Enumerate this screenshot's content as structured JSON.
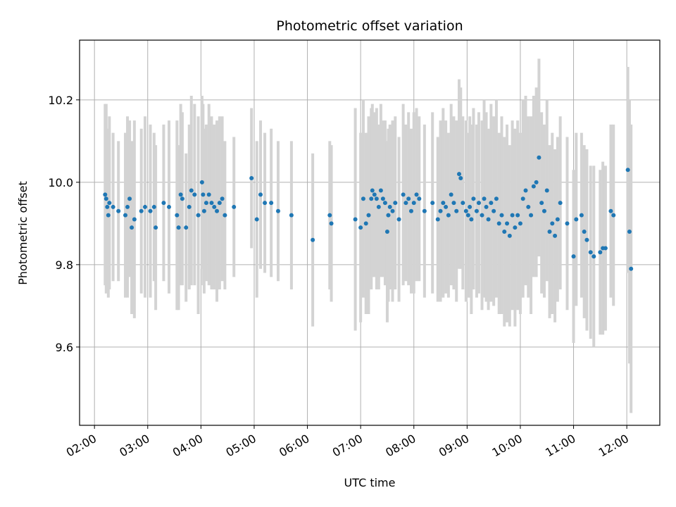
{
  "chart_data": {
    "type": "scatter",
    "title": "Photometric offset variation",
    "xlabel": "UTC time",
    "ylabel": "Photometric offset",
    "x_unit": "UTC hour of day",
    "xlim": [
      1.72,
      12.62
    ],
    "ylim": [
      9.41,
      10.345
    ],
    "grid": true,
    "legend": "none",
    "x_ticks": [
      {
        "value": 2,
        "label": "02:00"
      },
      {
        "value": 3,
        "label": "03:00"
      },
      {
        "value": 4,
        "label": "04:00"
      },
      {
        "value": 5,
        "label": "05:00"
      },
      {
        "value": 6,
        "label": "06:00"
      },
      {
        "value": 7,
        "label": "07:00"
      },
      {
        "value": 8,
        "label": "08:00"
      },
      {
        "value": 9,
        "label": "09:00"
      },
      {
        "value": 10,
        "label": "10:00"
      },
      {
        "value": 11,
        "label": "11:00"
      },
      {
        "value": 12,
        "label": "12:00"
      }
    ],
    "y_ticks": [
      {
        "value": 9.6,
        "label": "9.6"
      },
      {
        "value": 9.8,
        "label": "9.8"
      },
      {
        "value": 10.0,
        "label": "10.0"
      },
      {
        "value": 10.2,
        "label": "10.2"
      }
    ],
    "colors": {
      "points": "#1f77b4",
      "errorbars": "#d3d3d3",
      "grid": "#b0b0b0"
    },
    "points": [
      [
        2.2,
        9.97,
        0.22
      ],
      [
        2.22,
        9.96,
        0.23
      ],
      [
        2.24,
        9.94,
        0.19
      ],
      [
        2.26,
        9.92,
        0.2
      ],
      [
        2.28,
        9.95,
        0.21
      ],
      [
        2.35,
        9.94,
        0.18
      ],
      [
        2.45,
        9.93,
        0.17
      ],
      [
        2.58,
        9.92,
        0.2
      ],
      [
        2.62,
        9.94,
        0.22
      ],
      [
        2.66,
        9.96,
        0.19
      ],
      [
        2.7,
        9.89,
        0.21
      ],
      [
        2.75,
        9.91,
        0.24
      ],
      [
        2.88,
        9.93,
        0.2
      ],
      [
        2.95,
        9.94,
        0.22
      ],
      [
        3.05,
        9.93,
        0.21
      ],
      [
        3.12,
        9.94,
        0.18
      ],
      [
        3.15,
        9.89,
        0.2
      ],
      [
        3.3,
        9.95,
        0.19
      ],
      [
        3.4,
        9.94,
        0.21
      ],
      [
        3.55,
        9.92,
        0.23
      ],
      [
        3.58,
        9.89,
        0.2
      ],
      [
        3.62,
        9.97,
        0.22
      ],
      [
        3.65,
        9.96,
        0.21
      ],
      [
        3.72,
        9.89,
        0.18
      ],
      [
        3.78,
        9.94,
        0.2
      ],
      [
        3.82,
        9.98,
        0.23
      ],
      [
        3.88,
        9.97,
        0.22
      ],
      [
        3.95,
        9.92,
        0.24
      ],
      [
        4.02,
        10.0,
        0.21
      ],
      [
        4.04,
        9.97,
        0.22
      ],
      [
        4.06,
        9.93,
        0.2
      ],
      [
        4.1,
        9.95,
        0.19
      ],
      [
        4.15,
        9.97,
        0.22
      ],
      [
        4.2,
        9.95,
        0.21
      ],
      [
        4.25,
        9.94,
        0.2
      ],
      [
        4.3,
        9.93,
        0.22
      ],
      [
        4.35,
        9.95,
        0.21
      ],
      [
        4.4,
        9.96,
        0.2
      ],
      [
        4.45,
        9.92,
        0.18
      ],
      [
        4.62,
        9.94,
        0.17
      ],
      [
        4.95,
        10.01,
        0.17
      ],
      [
        5.05,
        9.91,
        0.19
      ],
      [
        5.12,
        9.97,
        0.18
      ],
      [
        5.2,
        9.95,
        0.17
      ],
      [
        5.32,
        9.95,
        0.18
      ],
      [
        5.45,
        9.93,
        0.17
      ],
      [
        5.7,
        9.92,
        0.18
      ],
      [
        6.1,
        9.86,
        0.21
      ],
      [
        6.42,
        9.92,
        0.18
      ],
      [
        6.45,
        9.9,
        0.19
      ],
      [
        6.9,
        9.91,
        0.27
      ],
      [
        7.0,
        9.89,
        0.23
      ],
      [
        7.05,
        9.96,
        0.24
      ],
      [
        7.1,
        9.9,
        0.22
      ],
      [
        7.15,
        9.92,
        0.24
      ],
      [
        7.2,
        9.96,
        0.22
      ],
      [
        7.22,
        9.98,
        0.21
      ],
      [
        7.26,
        9.97,
        0.2
      ],
      [
        7.3,
        9.96,
        0.22
      ],
      [
        7.34,
        9.94,
        0.2
      ],
      [
        7.38,
        9.98,
        0.21
      ],
      [
        7.42,
        9.96,
        0.19
      ],
      [
        7.46,
        9.95,
        0.2
      ],
      [
        7.5,
        9.88,
        0.22
      ],
      [
        7.52,
        9.92,
        0.21
      ],
      [
        7.55,
        9.94,
        0.2
      ],
      [
        7.6,
        9.93,
        0.22
      ],
      [
        7.65,
        9.95,
        0.21
      ],
      [
        7.72,
        9.91,
        0.2
      ],
      [
        7.8,
        9.97,
        0.22
      ],
      [
        7.85,
        9.95,
        0.19
      ],
      [
        7.9,
        9.96,
        0.21
      ],
      [
        7.95,
        9.93,
        0.2
      ],
      [
        8.0,
        9.95,
        0.22
      ],
      [
        8.05,
        9.97,
        0.21
      ],
      [
        8.1,
        9.96,
        0.2
      ],
      [
        8.2,
        9.93,
        0.21
      ],
      [
        8.35,
        9.95,
        0.22
      ],
      [
        8.45,
        9.91,
        0.2
      ],
      [
        8.5,
        9.93,
        0.22
      ],
      [
        8.55,
        9.95,
        0.23
      ],
      [
        8.6,
        9.94,
        0.21
      ],
      [
        8.65,
        9.92,
        0.2
      ],
      [
        8.7,
        9.97,
        0.22
      ],
      [
        8.75,
        9.95,
        0.21
      ],
      [
        8.8,
        9.93,
        0.22
      ],
      [
        8.85,
        10.02,
        0.23
      ],
      [
        8.88,
        10.01,
        0.22
      ],
      [
        8.92,
        9.95,
        0.21
      ],
      [
        8.98,
        9.93,
        0.22
      ],
      [
        9.02,
        9.92,
        0.2
      ],
      [
        9.05,
        9.94,
        0.22
      ],
      [
        9.08,
        9.91,
        0.23
      ],
      [
        9.12,
        9.96,
        0.22
      ],
      [
        9.18,
        9.93,
        0.21
      ],
      [
        9.22,
        9.95,
        0.22
      ],
      [
        9.28,
        9.92,
        0.23
      ],
      [
        9.32,
        9.96,
        0.24
      ],
      [
        9.36,
        9.94,
        0.23
      ],
      [
        9.4,
        9.91,
        0.22
      ],
      [
        9.45,
        9.95,
        0.24
      ],
      [
        9.5,
        9.93,
        0.23
      ],
      [
        9.55,
        9.96,
        0.24
      ],
      [
        9.6,
        9.9,
        0.22
      ],
      [
        9.65,
        9.92,
        0.24
      ],
      [
        9.7,
        9.88,
        0.23
      ],
      [
        9.75,
        9.9,
        0.24
      ],
      [
        9.8,
        9.87,
        0.22
      ],
      [
        9.85,
        9.92,
        0.23
      ],
      [
        9.9,
        9.89,
        0.24
      ],
      [
        9.95,
        9.92,
        0.23
      ],
      [
        10.0,
        9.9,
        0.22
      ],
      [
        10.05,
        9.96,
        0.24
      ],
      [
        10.1,
        9.98,
        0.23
      ],
      [
        10.15,
        9.94,
        0.22
      ],
      [
        10.2,
        9.92,
        0.24
      ],
      [
        10.25,
        9.99,
        0.22
      ],
      [
        10.3,
        10.0,
        0.23
      ],
      [
        10.35,
        10.06,
        0.24
      ],
      [
        10.4,
        9.95,
        0.22
      ],
      [
        10.45,
        9.93,
        0.21
      ],
      [
        10.5,
        9.98,
        0.22
      ],
      [
        10.55,
        9.88,
        0.21
      ],
      [
        10.6,
        9.9,
        0.22
      ],
      [
        10.65,
        9.87,
        0.21
      ],
      [
        10.7,
        9.91,
        0.2
      ],
      [
        10.75,
        9.95,
        0.21
      ],
      [
        10.88,
        9.9,
        0.21
      ],
      [
        11.0,
        9.82,
        0.21
      ],
      [
        11.05,
        9.91,
        0.21
      ],
      [
        11.15,
        9.92,
        0.2
      ],
      [
        11.2,
        9.88,
        0.21
      ],
      [
        11.25,
        9.86,
        0.22
      ],
      [
        11.32,
        9.83,
        0.21
      ],
      [
        11.38,
        9.82,
        0.22
      ],
      [
        11.5,
        9.83,
        0.2
      ],
      [
        11.55,
        9.84,
        0.21
      ],
      [
        11.6,
        9.84,
        0.2
      ],
      [
        11.7,
        9.93,
        0.21
      ],
      [
        11.75,
        9.92,
        0.22
      ],
      [
        12.02,
        10.03,
        0.25
      ],
      [
        12.05,
        9.88,
        0.32
      ],
      [
        12.08,
        9.79,
        0.35
      ]
    ]
  }
}
